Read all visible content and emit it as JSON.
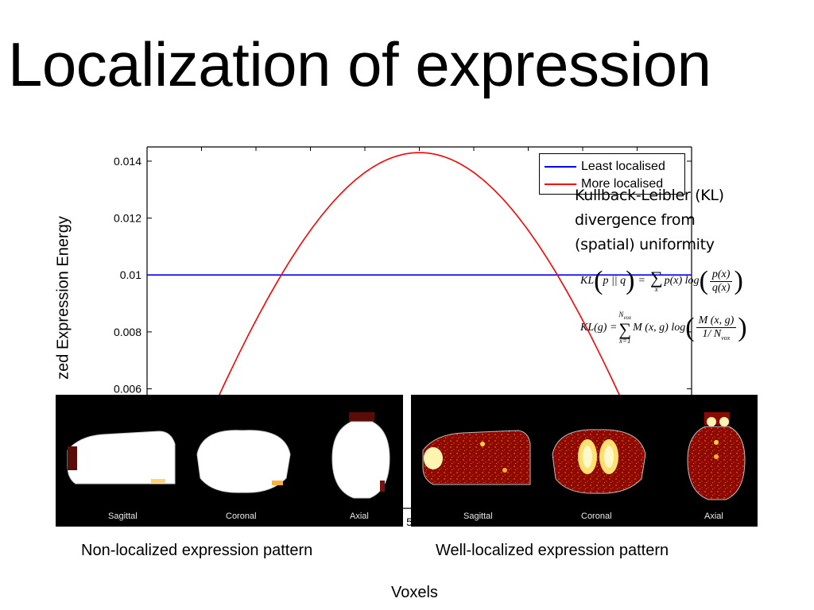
{
  "title": "Localization of expression",
  "chart_data": {
    "type": "line",
    "ylabel": "Normalized Expression Energy",
    "ylabel_visible": "zed Expression Energy",
    "xlabel": "Voxels",
    "y_ticks": [
      "0.014",
      "0.012",
      "0.01",
      "0.008",
      "0.006"
    ],
    "ylim": [
      0.0018,
      0.0145
    ],
    "x_tick_partial": "5",
    "series": [
      {
        "name": "Least localised",
        "color": "#0000ff",
        "shape": "constant",
        "value": 0.01
      },
      {
        "name": "More localised",
        "color": "#ff0000",
        "shape": "sine-arch",
        "peak": 0.0143,
        "x": [
          0,
          0.5,
          1
        ],
        "y": [
          0.0,
          0.0143,
          0.0
        ]
      }
    ],
    "legend_position": "top-right"
  },
  "annotation": {
    "lines": [
      "Kullback-Leibler (KL)",
      "divergence from",
      "(spatial) uniformity"
    ]
  },
  "formulas": {
    "f1_left": "KL",
    "f1_args": "p || q",
    "f1_eq": "=",
    "f1_sum_sub": "x",
    "f1_term": "p(x) log",
    "f1_num": "p(x)",
    "f1_den": "q(x)",
    "f2_left": "KL(g) =",
    "f2_sum_sup": "N",
    "f2_sum_sup_sub": "vox",
    "f2_sum_sub": "x=1",
    "f2_term": "M (x, g) log",
    "f2_num": "M (x, g)",
    "f2_den": "1/ N",
    "f2_den_sub": "vox"
  },
  "panels": {
    "left": {
      "labels": [
        "Sagittal",
        "Coronal",
        "Axial"
      ],
      "caption": "Non-localized expression pattern"
    },
    "right": {
      "labels": [
        "Sagittal",
        "Coronal",
        "Axial"
      ],
      "caption": "Well-localized expression pattern"
    }
  }
}
